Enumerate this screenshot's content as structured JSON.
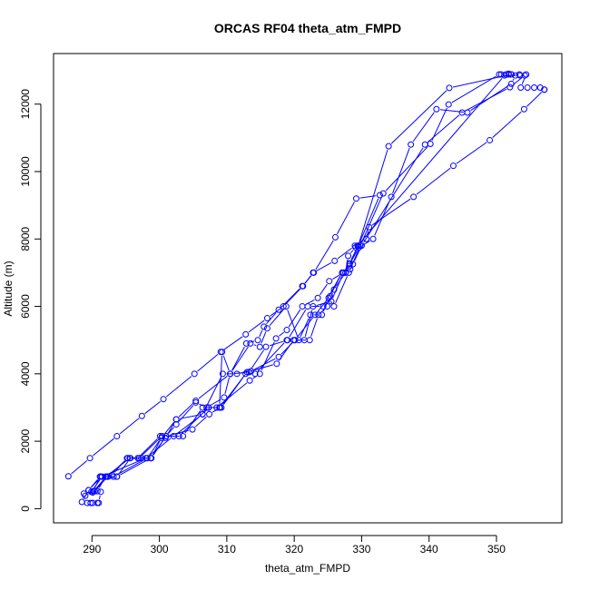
{
  "chart_data": {
    "type": "scatter",
    "title": "ORCAS RF04 theta_atm_FMPD",
    "xlabel": "theta_atm_FMPD",
    "ylabel": "Altitude (m)",
    "xlim": [
      284.3,
      359.7
    ],
    "ylim": [
      -420,
      13500
    ],
    "xticks": [
      290,
      300,
      310,
      320,
      330,
      340,
      350
    ],
    "yticks": [
      0,
      2000,
      4000,
      6000,
      8000,
      10000,
      12000
    ],
    "grid": false,
    "legend": "none",
    "color": "#0000ff",
    "series": [
      {
        "points": [
          [
            286.5,
            960
          ],
          [
            289.7,
            1500
          ],
          [
            293.7,
            2150
          ],
          [
            297.4,
            2750
          ],
          [
            300.6,
            3250
          ],
          [
            305.2,
            4000
          ],
          [
            309.1,
            4650
          ],
          [
            312.8,
            5170
          ],
          [
            316.0,
            5650
          ],
          [
            318.4,
            6000
          ],
          [
            321.3,
            6600
          ],
          [
            322.8,
            7000
          ],
          [
            326.0,
            7350
          ],
          [
            329.0,
            7800
          ],
          [
            330.7,
            8000
          ],
          [
            331.1,
            8350
          ],
          [
            337.7,
            9250
          ],
          [
            343.6,
            10170
          ],
          [
            349.0,
            10930
          ],
          [
            354.1,
            11850
          ],
          [
            357.1,
            12430
          ]
        ]
      },
      {
        "points": [
          [
            288.5,
            200
          ],
          [
            289.5,
            550
          ],
          [
            291.4,
            950
          ],
          [
            292.4,
            950
          ],
          [
            295.3,
            1500
          ],
          [
            296.8,
            1500
          ],
          [
            300.1,
            2150
          ],
          [
            301.0,
            2150
          ],
          [
            302.5,
            2500
          ],
          [
            305.4,
            3150
          ],
          [
            307.0,
            3000
          ],
          [
            309.6,
            3300
          ],
          [
            310.5,
            4000
          ],
          [
            313.5,
            4900
          ],
          [
            314.9,
            4800
          ],
          [
            316.0,
            5350
          ],
          [
            318.8,
            6000
          ],
          [
            320.7,
            5000
          ],
          [
            322.4,
            5750
          ],
          [
            324.1,
            5750
          ],
          [
            325.3,
            6300
          ],
          [
            327.1,
            7000
          ],
          [
            327.6,
            7000
          ],
          [
            328.2,
            7250
          ],
          [
            329.6,
            7750
          ],
          [
            331.7,
            8000
          ],
          [
            334.4,
            9250
          ],
          [
            337.3,
            10800
          ],
          [
            341.1,
            11850
          ],
          [
            345.7,
            11750
          ],
          [
            352.2,
            12600
          ],
          [
            352.8,
            12850
          ]
        ]
      },
      {
        "points": [
          [
            289.0,
            380
          ],
          [
            290.4,
            520
          ],
          [
            292.3,
            950
          ],
          [
            293.2,
            950
          ],
          [
            298.2,
            1500
          ],
          [
            300.3,
            2100
          ],
          [
            302.5,
            2650
          ],
          [
            305.4,
            3200
          ],
          [
            310.5,
            4000
          ],
          [
            313.3,
            4050
          ],
          [
            315.8,
            4800
          ],
          [
            319.0,
            5000
          ],
          [
            322.0,
            6000
          ],
          [
            324.3,
            6000
          ],
          [
            327.1,
            7000
          ],
          [
            328.3,
            7100
          ],
          [
            329.8,
            7800
          ],
          [
            333.2,
            9350
          ],
          [
            340.2,
            10820
          ],
          [
            342.9,
            11990
          ],
          [
            350.4,
            12880
          ],
          [
            351.8,
            12880
          ]
        ]
      },
      {
        "points": [
          [
            289.9,
            500
          ],
          [
            291.5,
            950
          ],
          [
            298.0,
            1500
          ],
          [
            302.1,
            2150
          ],
          [
            306.4,
            2800
          ],
          [
            309.4,
            4000
          ],
          [
            311.5,
            4000
          ],
          [
            313.6,
            4080
          ],
          [
            317.7,
            4500
          ],
          [
            320.1,
            5000
          ],
          [
            321.5,
            5000
          ],
          [
            322.8,
            6000
          ],
          [
            325.5,
            6150
          ],
          [
            327.3,
            7000
          ],
          [
            328.2,
            7280
          ],
          [
            329.5,
            7800
          ],
          [
            334.0,
            10750
          ],
          [
            343.0,
            12480
          ],
          [
            352.2,
            12880
          ]
        ]
      },
      {
        "points": [
          [
            288.8,
            450
          ],
          [
            290.8,
            520
          ],
          [
            292.0,
            950
          ],
          [
            293.7,
            950
          ],
          [
            295.7,
            1500
          ],
          [
            298.8,
            1500
          ],
          [
            301.0,
            2150
          ],
          [
            303.5,
            2150
          ],
          [
            306.4,
            3000
          ],
          [
            308.5,
            3000
          ],
          [
            313.4,
            3800
          ],
          [
            314.9,
            4000
          ],
          [
            317.3,
            5050
          ],
          [
            318.9,
            5300
          ],
          [
            321.2,
            6000
          ],
          [
            323.5,
            6250
          ],
          [
            325.2,
            6750
          ],
          [
            327.3,
            7000
          ],
          [
            328.2,
            7200
          ],
          [
            329.4,
            7800
          ],
          [
            351.2,
            12850
          ],
          [
            353.5,
            12850
          ]
        ]
      },
      {
        "points": [
          [
            290.1,
            480
          ],
          [
            292.1,
            950
          ],
          [
            295.6,
            1500
          ],
          [
            297.0,
            1500
          ],
          [
            300.4,
            2150
          ],
          [
            302.9,
            2150
          ],
          [
            307.3,
            3000
          ],
          [
            309.2,
            3000
          ],
          [
            312.8,
            4000
          ],
          [
            314.2,
            4000
          ],
          [
            318.9,
            5000
          ],
          [
            320.1,
            5000
          ],
          [
            323.1,
            5750
          ],
          [
            325.1,
            6250
          ],
          [
            325.9,
            6000
          ],
          [
            328.1,
            7000
          ],
          [
            328.7,
            7250
          ],
          [
            330.0,
            7800
          ],
          [
            339.4,
            10800
          ],
          [
            344.9,
            11750
          ],
          [
            352.0,
            12500
          ],
          [
            354.2,
            12850
          ]
        ]
      },
      {
        "points": [
          [
            289.3,
            170
          ],
          [
            289.8,
            170
          ],
          [
            290.1,
            170
          ],
          [
            290.8,
            170
          ],
          [
            291.0,
            170
          ],
          [
            291.3,
            500
          ]
        ]
      },
      {
        "points": [
          [
            289.5,
            550
          ],
          [
            291.2,
            950
          ],
          [
            293.7,
            950
          ],
          [
            298.7,
            1500
          ],
          [
            301.0,
            2150
          ],
          [
            304.9,
            2350
          ],
          [
            307.4,
            2800
          ],
          [
            309.0,
            3000
          ],
          [
            313.0,
            4050
          ],
          [
            317.4,
            4300
          ],
          [
            319.9,
            5000
          ],
          [
            322.3,
            5000
          ],
          [
            323.6,
            5750
          ],
          [
            324.9,
            6000
          ],
          [
            325.9,
            6500
          ],
          [
            327.6,
            7000
          ],
          [
            328.0,
            7500
          ],
          [
            329.1,
            7750
          ],
          [
            329.5,
            7800
          ],
          [
            332.7,
            9300
          ],
          [
            329.2,
            9200
          ],
          [
            326.1,
            8050
          ],
          [
            322.9,
            7000
          ],
          [
            321.2,
            6600
          ],
          [
            317.7,
            5900
          ],
          [
            315.5,
            5400
          ],
          [
            314.6,
            5000
          ],
          [
            312.9,
            4900
          ],
          [
            310.5,
            4000
          ],
          [
            309.3,
            4650
          ],
          [
            308.9,
            3000
          ],
          [
            307.3,
            3000
          ],
          [
            306.4,
            2800
          ],
          [
            302.5,
            2650
          ],
          [
            300.9,
            2100
          ],
          [
            300.4,
            2150
          ],
          [
            298.8,
            1500
          ],
          [
            297.3,
            1500
          ],
          [
            295.2,
            1500
          ],
          [
            293.0,
            1000
          ],
          [
            292.1,
            950
          ],
          [
            291.2,
            950
          ],
          [
            290.2,
            520
          ]
        ]
      },
      {
        "points": [
          [
            350.7,
            12880
          ],
          [
            351.4,
            12880
          ],
          [
            351.8,
            12900
          ],
          [
            352.2,
            12880
          ],
          [
            353.4,
            12880
          ],
          [
            354.4,
            12880
          ],
          [
            353.6,
            12490
          ],
          [
            354.6,
            12490
          ],
          [
            355.6,
            12490
          ],
          [
            356.5,
            12490
          ],
          [
            357.1,
            12430
          ]
        ]
      }
    ]
  }
}
